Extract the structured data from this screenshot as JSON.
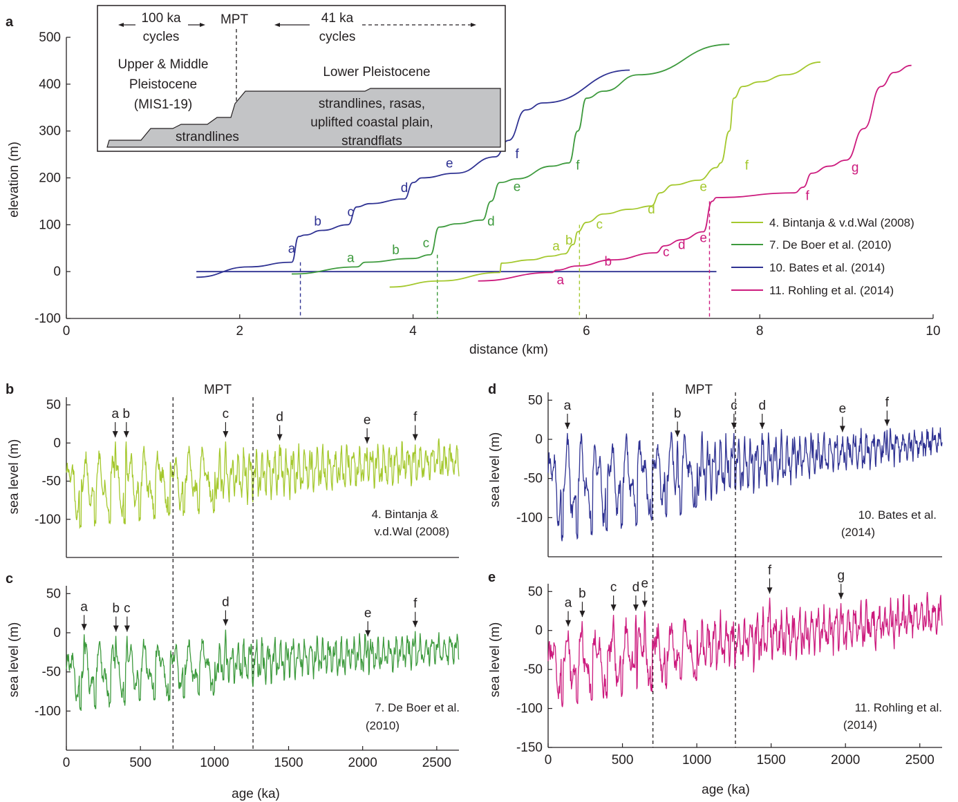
{
  "colors": {
    "bintanja": "#a4c82d",
    "deboer": "#3d9a3d",
    "bates": "#2e3192",
    "rohling": "#cc1a7d",
    "inset_fill": "#c3c4c6",
    "axis": "#231f20"
  },
  "panel_labels": {
    "a": "a",
    "b": "b",
    "c": "c",
    "d": "d",
    "e": "e"
  },
  "inset": {
    "cycles100_num": "100 ka",
    "cycles100_word": "cycles",
    "mpt": "MPT",
    "cycles41_num": "41 ka",
    "cycles41_word": "cycles",
    "upper_line1": "Upper & Middle",
    "upper_line2": "Pleistocene",
    "upper_line3": "(MIS1-19)",
    "lower_title": "Lower Pleistocene",
    "strandlines": "strandlines",
    "lower_line1": "strandlines, rasas,",
    "lower_line2": "uplifted coastal plain,",
    "lower_line3": "strandflats"
  },
  "mpt_label": "MPT",
  "chart_data": [
    {
      "panel": "a",
      "type": "line",
      "xlabel": "distance (km)",
      "ylabel": "elevation (m)",
      "xlim": [
        0,
        10
      ],
      "ylim": [
        -100,
        500
      ],
      "xticks": [
        0,
        2,
        4,
        6,
        8,
        10
      ],
      "yticks": [
        -100,
        0,
        100,
        200,
        300,
        400,
        500
      ],
      "legend_position": "right",
      "series": [
        {
          "key": "bintanja",
          "name": "4. Bintanja & v.d.Wal (2008)",
          "x": [
            3.73,
            4.3,
            5.0,
            5.02,
            5.35,
            5.6,
            5.75,
            5.85,
            5.9,
            6.0,
            6.2,
            6.5,
            6.75,
            6.85,
            7.0,
            7.3,
            7.5,
            7.55,
            7.65,
            7.7,
            7.8,
            8.0,
            8.3,
            8.7
          ],
          "y": [
            -33,
            -20,
            -2,
            18,
            25,
            33,
            38,
            58,
            85,
            105,
            123,
            133,
            140,
            168,
            185,
            195,
            222,
            232,
            300,
            370,
            395,
            405,
            420,
            447
          ]
        },
        {
          "key": "deboer",
          "name": "7. De Boer et al. (2010)",
          "x": [
            2.6,
            3.35,
            3.45,
            4.0,
            4.2,
            4.3,
            4.5,
            4.8,
            4.9,
            5.0,
            5.2,
            5.6,
            5.8,
            5.9,
            6.0,
            6.2,
            6.6,
            7.65
          ],
          "y": [
            -5,
            10,
            20,
            28,
            36,
            95,
            102,
            110,
            150,
            190,
            198,
            225,
            232,
            300,
            370,
            385,
            420,
            485
          ]
        },
        {
          "key": "bates",
          "name": "10. Bates et al. (2014)",
          "x": [
            1.5,
            2.1,
            2.6,
            2.68,
            2.75,
            2.95,
            3.25,
            3.35,
            3.5,
            3.9,
            4.0,
            4.1,
            4.5,
            4.95,
            5.1,
            5.3,
            5.5,
            6.5
          ],
          "y": [
            -12,
            10,
            20,
            75,
            78,
            88,
            100,
            138,
            145,
            155,
            190,
            200,
            210,
            245,
            280,
            345,
            360,
            430
          ]
        },
        {
          "key": "rohling",
          "name": "11. Rohling et al. (2014)",
          "x": [
            4.75,
            5.6,
            5.65,
            5.9,
            6.3,
            6.8,
            6.9,
            7.1,
            7.35,
            7.45,
            7.5,
            8.4,
            8.5,
            8.6,
            8.8,
            9.0,
            9.2,
            9.4,
            9.55,
            9.75
          ],
          "y": [
            -20,
            -2,
            3,
            12,
            25,
            40,
            55,
            68,
            85,
            150,
            158,
            168,
            180,
            210,
            225,
            238,
            305,
            395,
            425,
            440
          ]
        }
      ],
      "baseline": {
        "key": "bates",
        "x": [
          1.5,
          7.5
        ],
        "y": [
          0,
          0
        ]
      },
      "reference_lines": [
        {
          "key": "bates",
          "x": 2.7,
          "y_top": 20
        },
        {
          "key": "deboer",
          "x": 4.28,
          "y_top": 36
        },
        {
          "key": "bintanja",
          "x": 5.92,
          "y_top": 100
        },
        {
          "key": "rohling",
          "x": 7.42,
          "y_top": 150
        }
      ],
      "annotations": [
        {
          "key": "bates",
          "text": "a",
          "x": 2.6,
          "y": 40
        },
        {
          "key": "bates",
          "text": "b",
          "x": 2.9,
          "y": 98
        },
        {
          "key": "bates",
          "text": "c",
          "x": 3.28,
          "y": 118
        },
        {
          "key": "bates",
          "text": "d",
          "x": 3.9,
          "y": 170
        },
        {
          "key": "bates",
          "text": "e",
          "x": 4.42,
          "y": 222
        },
        {
          "key": "bates",
          "text": "f",
          "x": 5.2,
          "y": 242
        },
        {
          "key": "deboer",
          "text": "a",
          "x": 3.28,
          "y": 20
        },
        {
          "key": "deboer",
          "text": "b",
          "x": 3.8,
          "y": 37
        },
        {
          "key": "deboer",
          "text": "c",
          "x": 4.15,
          "y": 52
        },
        {
          "key": "deboer",
          "text": "d",
          "x": 4.9,
          "y": 98
        },
        {
          "key": "deboer",
          "text": "e",
          "x": 5.2,
          "y": 172
        },
        {
          "key": "deboer",
          "text": "f",
          "x": 5.9,
          "y": 218
        },
        {
          "key": "bintanja",
          "text": "a",
          "x": 5.65,
          "y": 45
        },
        {
          "key": "bintanja",
          "text": "b",
          "x": 5.8,
          "y": 58
        },
        {
          "key": "bintanja",
          "text": "c",
          "x": 6.15,
          "y": 92
        },
        {
          "key": "bintanja",
          "text": "d",
          "x": 6.75,
          "y": 124
        },
        {
          "key": "bintanja",
          "text": "e",
          "x": 7.35,
          "y": 172
        },
        {
          "key": "bintanja",
          "text": "f",
          "x": 7.85,
          "y": 218
        },
        {
          "key": "rohling",
          "text": "a",
          "x": 5.7,
          "y": -27
        },
        {
          "key": "rohling",
          "text": "b",
          "x": 6.25,
          "y": 13
        },
        {
          "key": "rohling",
          "text": "c",
          "x": 6.92,
          "y": 33
        },
        {
          "key": "rohling",
          "text": "d",
          "x": 7.1,
          "y": 48
        },
        {
          "key": "rohling",
          "text": "e",
          "x": 7.35,
          "y": 63
        },
        {
          "key": "rohling",
          "text": "f",
          "x": 8.55,
          "y": 153
        },
        {
          "key": "rohling",
          "text": "g",
          "x": 9.1,
          "y": 213
        }
      ]
    },
    {
      "panel": "b",
      "type": "line",
      "key": "bintanja",
      "xlabel": "",
      "ylabel": "sea level (m)",
      "xlim": [
        0,
        2650
      ],
      "ylim": [
        -150,
        60
      ],
      "xticks": [],
      "yticks": [
        -100,
        -50,
        0,
        50
      ],
      "legend_line1": "4. Bintanja &",
      "legend_line2": "v.d.Wal (2008)",
      "mpt_lines": [
        720,
        1260
      ],
      "generator": {
        "mean_start": -58,
        "mean_end": -22,
        "amp_start": 48,
        "amp_end": 26,
        "noise": 9,
        "seed": 4
      },
      "events": [
        {
          "label": "a",
          "age": 330,
          "level": 2
        },
        {
          "label": "b",
          "age": 405,
          "level": 2
        },
        {
          "label": "c",
          "age": 1075,
          "level": 2
        },
        {
          "label": "d",
          "age": 1440,
          "level": -2
        },
        {
          "label": "e",
          "age": 2030,
          "level": -6
        },
        {
          "label": "f",
          "age": 2355,
          "level": -2
        }
      ]
    },
    {
      "panel": "c",
      "type": "line",
      "key": "deboer",
      "xlabel": "age (ka)",
      "ylabel": "sea level (m)",
      "xlim": [
        0,
        2650
      ],
      "ylim": [
        -150,
        60
      ],
      "xticks": [
        0,
        500,
        1000,
        1500,
        2000,
        2500
      ],
      "yticks": [
        -100,
        -50,
        0,
        50
      ],
      "legend_line1": "7. De Boer et al.",
      "legend_line2": "(2010)",
      "mpt_lines": [
        720,
        1260
      ],
      "generator": {
        "mean_start": -52,
        "mean_end": -20,
        "amp_start": 42,
        "amp_end": 20,
        "noise": 8,
        "seed": 7
      },
      "events": [
        {
          "label": "a",
          "age": 120,
          "level": -2
        },
        {
          "label": "b",
          "age": 335,
          "level": -4
        },
        {
          "label": "c",
          "age": 410,
          "level": -4
        },
        {
          "label": "d",
          "age": 1075,
          "level": 4
        },
        {
          "label": "e",
          "age": 2035,
          "level": -10
        },
        {
          "label": "f",
          "age": 2355,
          "level": 2
        }
      ]
    },
    {
      "panel": "d",
      "type": "line",
      "key": "bates",
      "xlabel": "",
      "ylabel": "sea level (m)",
      "xlim": [
        0,
        2650
      ],
      "ylim": [
        -150,
        60
      ],
      "xticks": [],
      "yticks": [
        -100,
        -50,
        0,
        50
      ],
      "legend_line1": "10. Bates et al.",
      "legend_line2": "(2014)",
      "mpt_lines": [
        705,
        1260
      ],
      "generator": {
        "mean_start": -60,
        "mean_end": -2,
        "amp_start": 65,
        "amp_end": 14,
        "noise": 10,
        "seed": 10
      },
      "events": [
        {
          "label": "a",
          "age": 130,
          "level": 8
        },
        {
          "label": "b",
          "age": 870,
          "level": -2
        },
        {
          "label": "c",
          "age": 1250,
          "level": 8
        },
        {
          "label": "d",
          "age": 1440,
          "level": 8
        },
        {
          "label": "e",
          "age": 1980,
          "level": 4
        },
        {
          "label": "f",
          "age": 2280,
          "level": 12
        }
      ]
    },
    {
      "panel": "e",
      "type": "line",
      "key": "rohling",
      "xlabel": "age (ka)",
      "ylabel": "sea level (m)",
      "xlim": [
        0,
        2650
      ],
      "ylim": [
        -150,
        60
      ],
      "xticks": [
        0,
        500,
        1000,
        1500,
        2000,
        2500
      ],
      "yticks": [
        -150,
        -100,
        -50,
        0,
        50
      ],
      "legend_line1": "11. Rohling et al.",
      "legend_line2": "(2014)",
      "mpt_lines": [
        705,
        1260
      ],
      "generator": {
        "mean_start": -45,
        "mean_end": 20,
        "amp_start": 48,
        "amp_end": 24,
        "noise": 12,
        "seed": 11
      },
      "events": [
        {
          "label": "a",
          "age": 135,
          "level": 0
        },
        {
          "label": "b",
          "age": 230,
          "level": 12
        },
        {
          "label": "c",
          "age": 440,
          "level": 20
        },
        {
          "label": "d",
          "age": 590,
          "level": 20
        },
        {
          "label": "e",
          "age": 650,
          "level": 25
        },
        {
          "label": "f",
          "age": 1490,
          "level": 42
        },
        {
          "label": "g",
          "age": 1970,
          "level": 35
        }
      ]
    }
  ]
}
